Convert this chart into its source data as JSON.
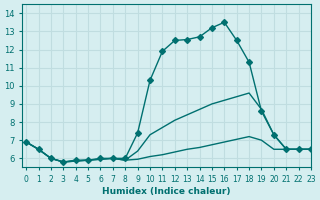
{
  "background_color": "#d6eef0",
  "grid_color": "#c0dde0",
  "line_color": "#007070",
  "xlabel": "Humidex (Indice chaleur)",
  "xlim": [
    0,
    23
  ],
  "ylim": [
    5.5,
    14.5
  ],
  "yticks": [
    6,
    7,
    8,
    9,
    10,
    11,
    12,
    13,
    14
  ],
  "xticks": [
    0,
    1,
    2,
    3,
    4,
    5,
    6,
    7,
    8,
    9,
    10,
    11,
    12,
    13,
    14,
    15,
    16,
    17,
    18,
    19,
    20,
    21,
    22,
    23
  ],
  "series": [
    {
      "x": [
        0,
        1,
        2,
        3,
        4,
        5,
        6,
        7,
        8,
        9,
        10,
        11,
        12,
        13,
        14,
        15,
        16,
        17,
        18,
        19,
        20,
        21,
        22,
        23
      ],
      "y": [
        6.9,
        6.5,
        6.0,
        5.8,
        5.9,
        5.9,
        6.0,
        6.0,
        6.0,
        7.4,
        10.3,
        11.9,
        12.5,
        12.55,
        12.7,
        13.2,
        13.5,
        12.5,
        11.3,
        8.6,
        7.3,
        6.5,
        6.5,
        6.5
      ],
      "marker": "D",
      "markersize": 3
    },
    {
      "x": [
        0,
        1,
        2,
        3,
        4,
        5,
        6,
        7,
        8,
        9,
        10,
        11,
        12,
        13,
        14,
        15,
        16,
        17,
        18,
        19,
        20,
        21,
        22,
        23
      ],
      "y": [
        6.9,
        6.5,
        6.0,
        5.8,
        5.85,
        5.9,
        5.95,
        6.0,
        5.9,
        6.4,
        7.3,
        7.7,
        8.1,
        8.4,
        8.7,
        9.0,
        9.2,
        9.4,
        9.6,
        8.7,
        7.3,
        6.5,
        6.5,
        6.5
      ],
      "marker": null,
      "markersize": 0
    },
    {
      "x": [
        0,
        1,
        2,
        3,
        4,
        5,
        6,
        7,
        8,
        9,
        10,
        11,
        12,
        13,
        14,
        15,
        16,
        17,
        18,
        19,
        20,
        21,
        22,
        23
      ],
      "y": [
        6.9,
        6.5,
        6.0,
        5.8,
        5.85,
        5.9,
        5.95,
        6.0,
        5.9,
        5.95,
        6.1,
        6.2,
        6.35,
        6.5,
        6.6,
        6.75,
        6.9,
        7.05,
        7.2,
        7.0,
        6.5,
        6.5,
        6.5,
        6.5
      ],
      "marker": null,
      "markersize": 0
    }
  ]
}
